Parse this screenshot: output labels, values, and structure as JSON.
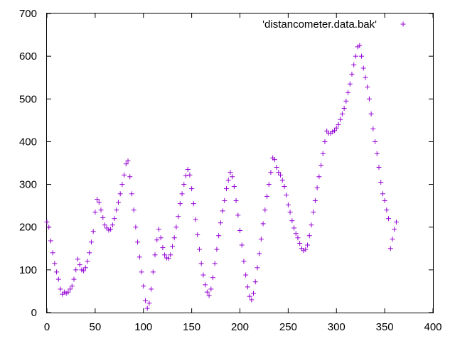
{
  "chart_data": {
    "type": "scatter",
    "title": "",
    "xlabel": "",
    "ylabel": "",
    "xlim": [
      0,
      400
    ],
    "ylim": [
      0,
      700
    ],
    "xticks": [
      0,
      50,
      100,
      150,
      200,
      250,
      300,
      350,
      400
    ],
    "yticks": [
      0,
      100,
      200,
      300,
      400,
      500,
      600,
      700
    ],
    "grid": false,
    "legend_position": "top-right",
    "series": [
      {
        "name": "'distancometer.data.bak'",
        "color": "#9400d3",
        "marker": "plus",
        "points": [
          [
            0,
            212
          ],
          [
            2,
            200
          ],
          [
            4,
            168
          ],
          [
            6,
            140
          ],
          [
            8,
            115
          ],
          [
            10,
            95
          ],
          [
            12,
            78
          ],
          [
            14,
            55
          ],
          [
            16,
            43
          ],
          [
            18,
            48
          ],
          [
            20,
            45
          ],
          [
            22,
            48
          ],
          [
            24,
            55
          ],
          [
            26,
            62
          ],
          [
            28,
            78
          ],
          [
            30,
            100
          ],
          [
            32,
            125
          ],
          [
            34,
            112
          ],
          [
            36,
            100
          ],
          [
            38,
            98
          ],
          [
            40,
            105
          ],
          [
            42,
            120
          ],
          [
            44,
            140
          ],
          [
            46,
            165
          ],
          [
            48,
            190
          ],
          [
            50,
            235
          ],
          [
            52,
            265
          ],
          [
            54,
            258
          ],
          [
            56,
            240
          ],
          [
            58,
            222
          ],
          [
            60,
            205
          ],
          [
            62,
            198
          ],
          [
            64,
            193
          ],
          [
            66,
            195
          ],
          [
            68,
            205
          ],
          [
            70,
            220
          ],
          [
            72,
            240
          ],
          [
            74,
            258
          ],
          [
            76,
            278
          ],
          [
            78,
            300
          ],
          [
            80,
            322
          ],
          [
            82,
            348
          ],
          [
            84,
            355
          ],
          [
            86,
            318
          ],
          [
            88,
            278
          ],
          [
            90,
            240
          ],
          [
            92,
            200
          ],
          [
            94,
            165
          ],
          [
            96,
            130
          ],
          [
            98,
            95
          ],
          [
            100,
            62
          ],
          [
            102,
            28
          ],
          [
            104,
            10
          ],
          [
            106,
            22
          ],
          [
            108,
            55
          ],
          [
            110,
            95
          ],
          [
            112,
            135
          ],
          [
            114,
            170
          ],
          [
            116,
            195
          ],
          [
            118,
            175
          ],
          [
            120,
            152
          ],
          [
            122,
            135
          ],
          [
            124,
            128
          ],
          [
            126,
            127
          ],
          [
            128,
            135
          ],
          [
            130,
            155
          ],
          [
            132,
            175
          ],
          [
            134,
            200
          ],
          [
            136,
            225
          ],
          [
            138,
            255
          ],
          [
            140,
            278
          ],
          [
            142,
            300
          ],
          [
            144,
            320
          ],
          [
            146,
            335
          ],
          [
            148,
            322
          ],
          [
            150,
            290
          ],
          [
            152,
            255
          ],
          [
            154,
            218
          ],
          [
            156,
            182
          ],
          [
            158,
            148
          ],
          [
            160,
            115
          ],
          [
            162,
            88
          ],
          [
            164,
            65
          ],
          [
            166,
            48
          ],
          [
            168,
            40
          ],
          [
            170,
            55
          ],
          [
            172,
            82
          ],
          [
            174,
            115
          ],
          [
            176,
            148
          ],
          [
            178,
            180
          ],
          [
            180,
            210
          ],
          [
            182,
            238
          ],
          [
            184,
            262
          ],
          [
            186,
            290
          ],
          [
            188,
            310
          ],
          [
            190,
            328
          ],
          [
            192,
            318
          ],
          [
            194,
            295
          ],
          [
            196,
            262
          ],
          [
            198,
            228
          ],
          [
            200,
            192
          ],
          [
            202,
            158
          ],
          [
            204,
            120
          ],
          [
            206,
            88
          ],
          [
            208,
            60
          ],
          [
            210,
            38
          ],
          [
            212,
            30
          ],
          [
            214,
            45
          ],
          [
            216,
            72
          ],
          [
            218,
            105
          ],
          [
            220,
            138
          ],
          [
            222,
            172
          ],
          [
            224,
            208
          ],
          [
            226,
            240
          ],
          [
            228,
            272
          ],
          [
            230,
            300
          ],
          [
            232,
            328
          ],
          [
            234,
            362
          ],
          [
            236,
            358
          ],
          [
            238,
            340
          ],
          [
            240,
            328
          ],
          [
            242,
            322
          ],
          [
            244,
            310
          ],
          [
            246,
            295
          ],
          [
            248,
            275
          ],
          [
            250,
            252
          ],
          [
            252,
            235
          ],
          [
            254,
            215
          ],
          [
            256,
            198
          ],
          [
            258,
            185
          ],
          [
            260,
            175
          ],
          [
            262,
            162
          ],
          [
            264,
            150
          ],
          [
            266,
            145
          ],
          [
            268,
            148
          ],
          [
            270,
            158
          ],
          [
            272,
            180
          ],
          [
            274,
            205
          ],
          [
            276,
            235
          ],
          [
            278,
            262
          ],
          [
            280,
            292
          ],
          [
            282,
            318
          ],
          [
            284,
            345
          ],
          [
            286,
            372
          ],
          [
            288,
            400
          ],
          [
            290,
            425
          ],
          [
            292,
            420
          ],
          [
            294,
            420
          ],
          [
            296,
            423
          ],
          [
            298,
            426
          ],
          [
            300,
            432
          ],
          [
            302,
            440
          ],
          [
            304,
            452
          ],
          [
            306,
            465
          ],
          [
            308,
            478
          ],
          [
            310,
            495
          ],
          [
            312,
            515
          ],
          [
            314,
            535
          ],
          [
            316,
            558
          ],
          [
            318,
            580
          ],
          [
            320,
            600
          ],
          [
            322,
            622
          ],
          [
            324,
            625
          ],
          [
            326,
            600
          ],
          [
            328,
            572
          ],
          [
            330,
            550
          ],
          [
            332,
            528
          ],
          [
            334,
            500
          ],
          [
            336,
            465
          ],
          [
            338,
            430
          ],
          [
            340,
            400
          ],
          [
            342,
            372
          ],
          [
            344,
            340
          ],
          [
            346,
            305
          ],
          [
            348,
            278
          ],
          [
            350,
            262
          ],
          [
            352,
            240
          ],
          [
            354,
            220
          ],
          [
            356,
            150
          ],
          [
            358,
            172
          ],
          [
            360,
            195
          ],
          [
            362,
            212
          ]
        ]
      }
    ]
  }
}
